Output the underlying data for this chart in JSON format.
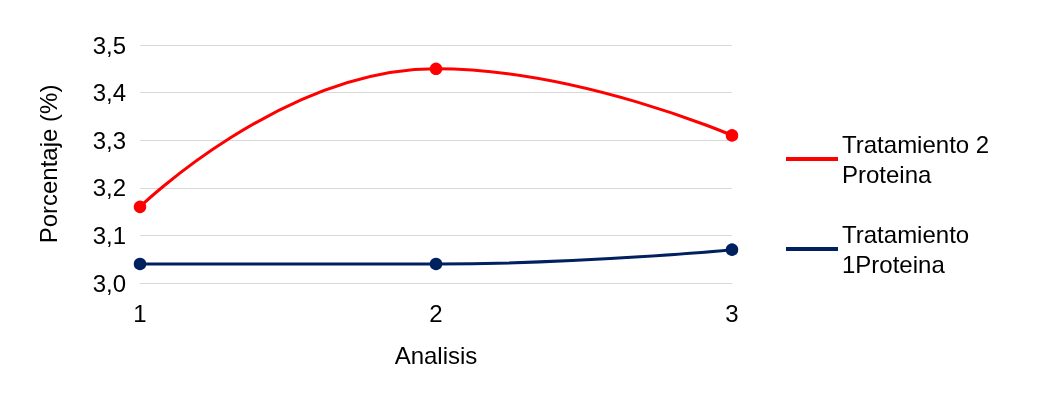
{
  "chart_data": {
    "type": "line",
    "xlabel": "Analisis",
    "ylabel": "Porcentaje (%)",
    "categories": [
      "1",
      "2",
      "3"
    ],
    "series": [
      {
        "name": "Tratamiento 2 Proteina",
        "color": "#ff0000",
        "values": [
          3.16,
          3.45,
          3.31
        ]
      },
      {
        "name": "Tratamiento 1Proteina",
        "color": "#002060",
        "values": [
          3.04,
          3.04,
          3.07
        ]
      }
    ],
    "ylim": [
      3.0,
      3.5
    ],
    "yticks": [
      {
        "value": 3.0,
        "label": "3,0"
      },
      {
        "value": 3.1,
        "label": "3,1"
      },
      {
        "value": 3.2,
        "label": "3,2"
      },
      {
        "value": 3.3,
        "label": "3,3"
      },
      {
        "value": 3.4,
        "label": "3,4"
      },
      {
        "value": 3.5,
        "label": "3,5"
      }
    ],
    "grid": "y",
    "legend": "right",
    "marker": "circle",
    "line_style": "solid"
  }
}
